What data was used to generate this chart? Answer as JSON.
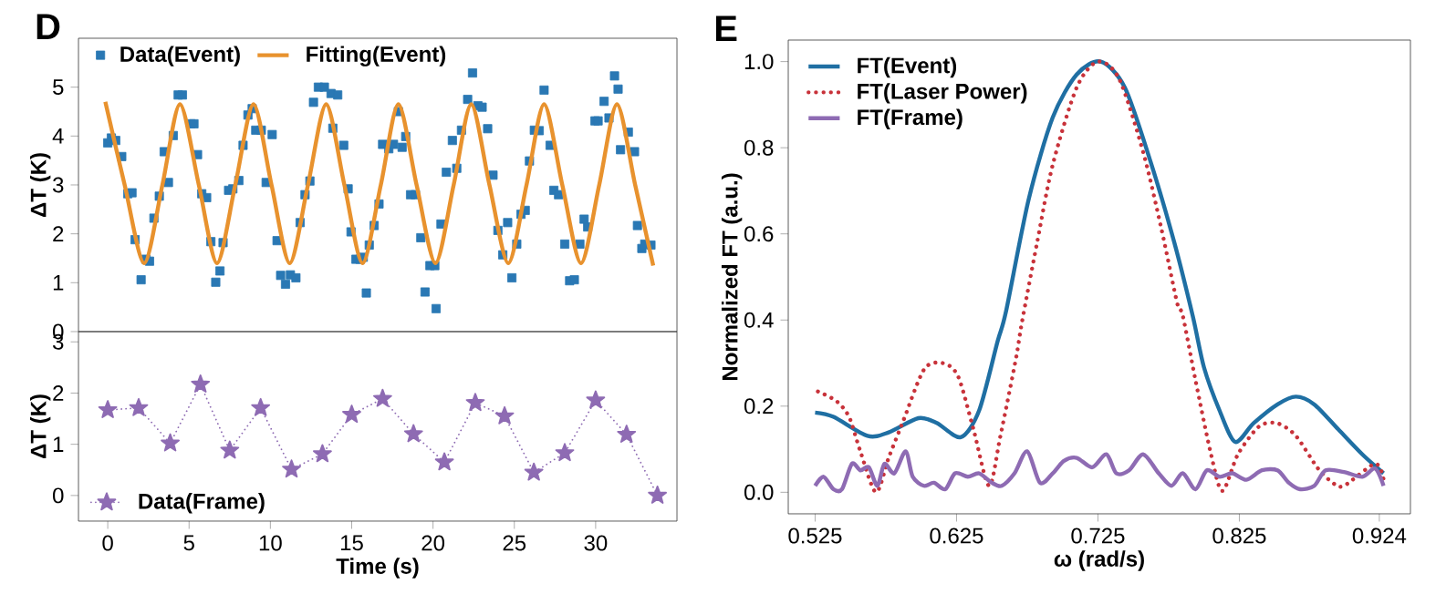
{
  "chart_data": [
    {
      "type": "scatter",
      "annotations": [
        "D"
      ],
      "ylabel": "ΔT (K)",
      "xlim": [
        -1.8,
        35
      ],
      "ylim": [
        0,
        6
      ],
      "yticks": [
        0,
        1,
        2,
        3,
        4,
        5
      ],
      "tick_labels": "y",
      "legend": "top",
      "series": [
        {
          "name": "Data(Event)",
          "type": "scatter",
          "marker": "square",
          "color": "#2a78b4",
          "x": [
            0.0,
            0.22,
            0.49,
            0.86,
            1.23,
            1.49,
            1.68,
            2.05,
            2.35,
            2.57,
            2.84,
            3.17,
            3.47,
            3.73,
            4.03,
            4.33,
            4.59,
            5.11,
            5.3,
            5.52,
            5.78,
            6.08,
            6.34,
            6.64,
            6.9,
            7.09,
            7.43,
            7.69,
            8.06,
            8.32,
            8.62,
            8.88,
            9.1,
            9.44,
            9.74,
            10.11,
            10.41,
            10.63,
            10.93,
            11.23,
            11.57,
            11.83,
            12.13,
            12.43,
            12.65,
            12.95,
            13.32,
            13.73,
            14.14,
            13.84,
            14.51,
            14.78,
            14.96,
            15.26,
            15.52,
            15.71,
            15.9,
            16.08,
            16.38,
            16.68,
            16.9,
            17.28,
            17.57,
            17.87,
            18.1,
            18.32,
            18.62,
            18.92,
            19.25,
            19.51,
            19.81,
            20.11,
            20.19,
            20.49,
            20.82,
            21.19,
            21.46,
            21.75,
            22.13,
            22.43,
            22.76,
            23.02,
            23.36,
            23.69,
            23.99,
            24.29,
            24.59,
            24.85,
            25.15,
            25.41,
            25.67,
            25.93,
            26.23,
            26.53,
            26.83,
            27.2,
            27.43,
            27.72,
            28.1,
            28.4,
            28.69,
            29.03,
            29.29,
            29.51,
            29.96,
            30.15,
            30.52,
            30.82,
            31.16,
            31.38,
            31.53,
            32.01,
            32.39,
            32.57,
            32.84,
            33.02,
            33.4
          ],
          "values": [
            3.86,
            3.96,
            3.91,
            3.58,
            2.82,
            2.84,
            1.88,
            1.06,
            1.48,
            1.44,
            2.32,
            2.77,
            3.68,
            3.05,
            4.01,
            4.84,
            4.84,
            4.25,
            4.25,
            3.62,
            2.82,
            2.74,
            1.84,
            1.01,
            1.24,
            1.82,
            2.89,
            2.92,
            3.09,
            3.81,
            4.43,
            4.56,
            4.12,
            4.12,
            3.05,
            4.03,
            1.86,
            1.15,
            0.97,
            1.16,
            1.1,
            2.23,
            2.8,
            3.08,
            4.69,
            5.0,
            5.0,
            4.87,
            4.84,
            4.16,
            3.81,
            2.92,
            2.04,
            1.48,
            1.48,
            1.52,
            0.79,
            1.77,
            2.17,
            2.61,
            3.83,
            3.74,
            3.83,
            4.5,
            3.77,
            3.99,
            2.8,
            2.8,
            1.92,
            0.81,
            1.35,
            1.35,
            0.47,
            2.2,
            3.26,
            3.91,
            3.34,
            4.12,
            4.75,
            5.29,
            4.62,
            4.59,
            4.15,
            3.2,
            2.07,
            1.57,
            2.23,
            1.1,
            1.79,
            2.4,
            2.48,
            3.49,
            4.12,
            4.11,
            4.94,
            3.81,
            2.89,
            2.8,
            1.79,
            1.04,
            1.06,
            1.79,
            2.3,
            2.14,
            4.31,
            4.31,
            4.71,
            4.37,
            5.23,
            4.96,
            3.72,
            4.08,
            3.68,
            2.17,
            1.7,
            1.79,
            1.77
          ]
        },
        {
          "name": "Fitting(Event)",
          "type": "line",
          "marker": "none",
          "color": "#e8922e",
          "x": [
            -0.15,
            1.04,
            2.24,
            3.36,
            4.44,
            5.6,
            6.72,
            7.84,
            8.96,
            10.07,
            11.19,
            12.31,
            13.43,
            14.55,
            15.67,
            16.79,
            17.87,
            18.99,
            20.15,
            21.27,
            22.35,
            23.47,
            24.63,
            25.75,
            26.83,
            27.95,
            29.1,
            30.22,
            31.31,
            32.43,
            33.54
          ],
          "values": [
            4.7,
            3.0,
            1.4,
            3.0,
            4.65,
            3.0,
            1.4,
            3.0,
            4.65,
            3.0,
            1.4,
            3.0,
            4.65,
            3.0,
            1.4,
            3.0,
            4.65,
            3.0,
            1.4,
            3.0,
            4.65,
            3.0,
            1.4,
            3.0,
            4.65,
            3.0,
            1.4,
            3.0,
            4.65,
            3.0,
            1.35
          ]
        }
      ]
    },
    {
      "type": "line",
      "xlabel": "Time (s)",
      "ylabel": "ΔT (K)",
      "xlim": [
        -1.8,
        35
      ],
      "ylim": [
        -0.5,
        3.2
      ],
      "xticks": [
        0,
        5,
        10,
        15,
        20,
        25,
        30
      ],
      "yticks": [
        0,
        1,
        2,
        3
      ],
      "legend": "bottom left",
      "marker": "star",
      "line_style": "dotted",
      "series": [
        {
          "name": "Data(Frame)",
          "color": "#8e6bb3",
          "x": [
            0,
            1.9,
            3.84,
            5.7,
            7.5,
            9.4,
            11.3,
            13.2,
            15.0,
            16.9,
            18.8,
            20.7,
            22.6,
            24.4,
            26.2,
            28.1,
            30.0,
            31.9,
            33.8
          ],
          "values": [
            1.67,
            1.71,
            1.02,
            2.17,
            0.88,
            1.71,
            0.51,
            0.81,
            1.58,
            1.89,
            1.2,
            0.65,
            1.81,
            1.55,
            0.45,
            0.83,
            1.86,
            1.19,
            0
          ]
        }
      ]
    },
    {
      "type": "line",
      "annotations": [
        "E"
      ],
      "xlabel": "ω (rad/s)",
      "ylabel": "Normalized FT (a.u.)",
      "xlim": [
        0.506,
        0.946
      ],
      "ylim": [
        -0.05,
        1.05
      ],
      "xticks": [
        0.525,
        0.625,
        0.725,
        0.825,
        0.924
      ],
      "yticks": [
        {
          "value": 0,
          "label": "0.0"
        },
        {
          "value": 0.2,
          "label": "0.2"
        },
        {
          "value": 0.4,
          "label": "0.4"
        },
        {
          "value": 0.6,
          "label": "0.6"
        },
        {
          "value": 0.8,
          "label": "0.8"
        },
        {
          "value": 1,
          "label": "1.0"
        }
      ],
      "legend": "top left",
      "marker": "none",
      "line_style": "solid",
      "series": [
        {
          "name": "FT(Event)",
          "color": "#1f6fa3",
          "x": [
            0.525,
            0.538,
            0.562,
            0.577,
            0.598,
            0.611,
            0.628,
            0.641,
            0.654,
            0.66,
            0.676,
            0.693,
            0.71,
            0.727,
            0.744,
            0.762,
            0.779,
            0.792,
            0.8,
            0.811,
            0.822,
            0.835,
            0.852,
            0.865,
            0.878,
            0.895,
            0.912,
            0.927
          ],
          "values": [
            0.185,
            0.175,
            0.131,
            0.139,
            0.172,
            0.161,
            0.128,
            0.19,
            0.35,
            0.42,
            0.68,
            0.87,
            0.97,
            1.0,
            0.94,
            0.77,
            0.58,
            0.41,
            0.29,
            0.19,
            0.117,
            0.16,
            0.204,
            0.222,
            0.204,
            0.146,
            0.088,
            0.044
          ]
        },
        {
          "name": "FT(Laser Power)",
          "color": "#c8323a",
          "line_style": "dotted",
          "x": [
            0.527,
            0.54,
            0.549,
            0.557,
            0.568,
            0.577,
            0.587,
            0.602,
            0.615,
            0.626,
            0.637,
            0.648,
            0.656,
            0.667,
            0.671,
            0.682,
            0.693,
            0.71,
            0.725,
            0.74,
            0.757,
            0.77,
            0.781,
            0.785,
            0.794,
            0.805,
            0.813,
            0.824,
            0.839,
            0.852,
            0.865,
            0.88,
            0.891,
            0.899,
            0.921,
            0.927
          ],
          "values": [
            0.234,
            0.212,
            0.175,
            0.095,
            0.0,
            0.08,
            0.163,
            0.285,
            0.3,
            0.27,
            0.146,
            0.015,
            0.13,
            0.31,
            0.39,
            0.58,
            0.76,
            0.94,
            1.0,
            0.96,
            0.79,
            0.61,
            0.44,
            0.41,
            0.26,
            0.088,
            0.003,
            0.088,
            0.153,
            0.16,
            0.131,
            0.058,
            0.022,
            0.015,
            0.066,
            0.03
          ]
        },
        {
          "name": "FT(Frame)",
          "color": "#8e6bb3",
          "x": [
            0.525,
            0.531,
            0.538,
            0.544,
            0.551,
            0.557,
            0.563,
            0.569,
            0.574,
            0.581,
            0.589,
            0.594,
            0.602,
            0.609,
            0.617,
            0.624,
            0.633,
            0.641,
            0.65,
            0.657,
            0.666,
            0.675,
            0.684,
            0.693,
            0.701,
            0.71,
            0.721,
            0.731,
            0.738,
            0.747,
            0.757,
            0.768,
            0.777,
            0.785,
            0.794,
            0.802,
            0.811,
            0.82,
            0.83,
            0.841,
            0.852,
            0.86,
            0.868,
            0.878,
            0.886,
            0.899,
            0.912,
            0.921,
            0.927
          ],
          "values": [
            0.015,
            0.036,
            0.007,
            0.007,
            0.066,
            0.051,
            0.058,
            0.015,
            0.066,
            0.044,
            0.095,
            0.036,
            0.015,
            0.022,
            0.007,
            0.044,
            0.036,
            0.044,
            0.022,
            0.015,
            0.044,
            0.095,
            0.022,
            0.044,
            0.073,
            0.08,
            0.058,
            0.088,
            0.044,
            0.051,
            0.088,
            0.044,
            0.015,
            0.044,
            0.007,
            0.051,
            0.036,
            0.044,
            0.029,
            0.051,
            0.051,
            0.022,
            0.007,
            0.015,
            0.051,
            0.047,
            0.036,
            0.055,
            0.015
          ]
        }
      ]
    }
  ]
}
